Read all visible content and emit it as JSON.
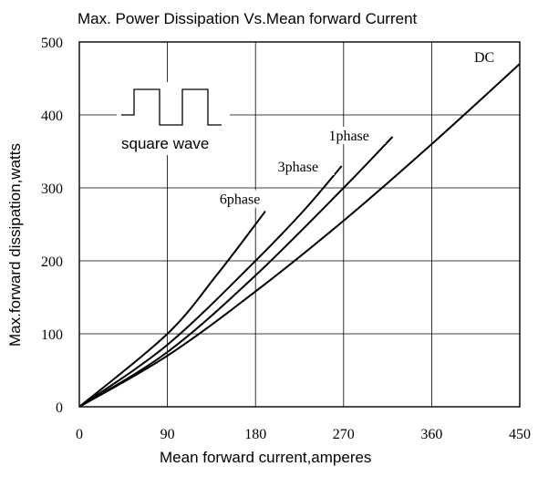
{
  "chart_data": {
    "type": "line",
    "title": "Max. Power Dissipation Vs.Mean forward Current",
    "xlabel": "Mean forward current,amperes",
    "ylabel": "Max.forward dissipation,watts",
    "xlim": [
      0,
      450
    ],
    "ylim": [
      0,
      500
    ],
    "x_ticks": [
      "0",
      "90",
      "180",
      "270",
      "360",
      "450"
    ],
    "y_ticks": [
      "0",
      "100",
      "200",
      "300",
      "400",
      "500"
    ],
    "grid": true,
    "series": [
      {
        "name": "DC",
        "x": [
          0,
          90,
          180,
          270,
          360,
          450
        ],
        "y": [
          0,
          70,
          158,
          255,
          360,
          470
        ]
      },
      {
        "name": "1phase",
        "x": [
          0,
          90,
          180,
          270,
          320
        ],
        "y": [
          0,
          75,
          180,
          300,
          370
        ]
      },
      {
        "name": "3phase",
        "x": [
          0,
          90,
          180,
          230,
          268
        ],
        "y": [
          0,
          85,
          200,
          270,
          330
        ]
      },
      {
        "name": "6phase",
        "x": [
          0,
          90,
          140,
          180,
          190
        ],
        "y": [
          0,
          100,
          180,
          250,
          268
        ]
      }
    ],
    "inset": {
      "label": "square wave"
    }
  }
}
